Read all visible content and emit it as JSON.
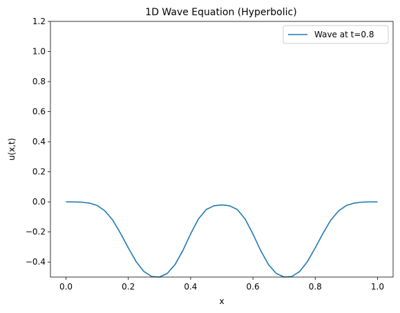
{
  "chart_data": {
    "type": "line",
    "title": "1D Wave Equation (Hyperbolic)",
    "xlabel": "x",
    "ylabel": "u(x,t)",
    "xlim": [
      -0.05,
      1.05
    ],
    "ylim": [
      -0.5,
      1.2
    ],
    "xticks": [
      0.0,
      0.2,
      0.4,
      0.6,
      0.8,
      1.0
    ],
    "xtick_labels": [
      "0.0",
      "0.2",
      "0.4",
      "0.6",
      "0.8",
      "1.0"
    ],
    "yticks": [
      -0.4,
      -0.2,
      0.0,
      0.2,
      0.4,
      0.6,
      0.8,
      1.0,
      1.2
    ],
    "ytick_labels": [
      "−0.4",
      "−0.2",
      "0.0",
      "0.2",
      "0.4",
      "0.6",
      "0.8",
      "1.0",
      "1.2"
    ],
    "grid": false,
    "legend_position": "top-right",
    "series": [
      {
        "name": "Wave at t=0.8",
        "color": "#1f77b4",
        "x": [
          0.0,
          0.025,
          0.05,
          0.075,
          0.1,
          0.125,
          0.15,
          0.175,
          0.2,
          0.225,
          0.25,
          0.275,
          0.3,
          0.325,
          0.35,
          0.375,
          0.4,
          0.425,
          0.45,
          0.475,
          0.5,
          0.525,
          0.55,
          0.575,
          0.6,
          0.625,
          0.65,
          0.675,
          0.7,
          0.725,
          0.75,
          0.775,
          0.8,
          0.825,
          0.85,
          0.875,
          0.9,
          0.925,
          0.95,
          0.975,
          1.0
        ],
        "y": [
          0.0,
          -0.0004,
          -0.002,
          -0.008,
          -0.024,
          -0.06,
          -0.121,
          -0.209,
          -0.306,
          -0.397,
          -0.463,
          -0.496,
          -0.5,
          -0.476,
          -0.417,
          -0.324,
          -0.213,
          -0.114,
          -0.051,
          -0.026,
          -0.02,
          -0.026,
          -0.051,
          -0.114,
          -0.213,
          -0.324,
          -0.417,
          -0.476,
          -0.5,
          -0.496,
          -0.463,
          -0.397,
          -0.306,
          -0.209,
          -0.121,
          -0.06,
          -0.024,
          -0.008,
          -0.002,
          -0.0004,
          0.0
        ]
      }
    ]
  }
}
